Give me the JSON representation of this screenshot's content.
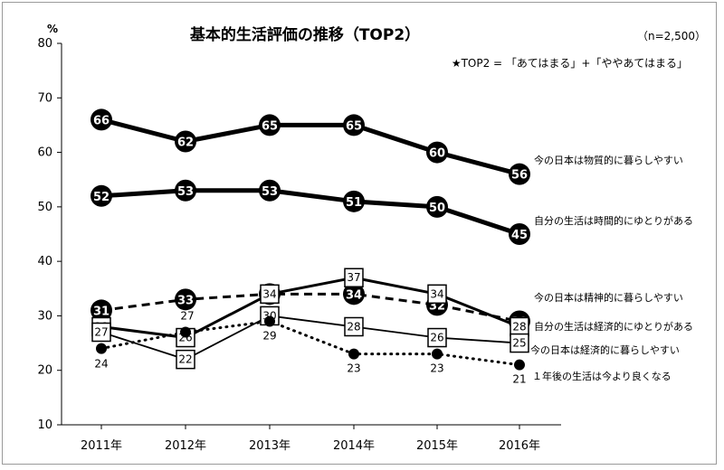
{
  "chart_data": {
    "type": "line",
    "title": "基本的生活評価の推移（TOP2）",
    "sample_note": "（n=2,500）",
    "top2_note": "★TOP2 = 「あてはまる」+「ややあてはまる」",
    "y_unit": "%",
    "ylim": [
      10,
      80
    ],
    "y_ticks": [
      10,
      20,
      30,
      40,
      50,
      60,
      70,
      80
    ],
    "categories": [
      "2011年",
      "2012年",
      "2013年",
      "2014年",
      "2015年",
      "2016年"
    ],
    "grid": false,
    "legend": "inline-right",
    "series": [
      {
        "name": "今の日本は物質的に暮らしやすい",
        "values": [
          66,
          62,
          65,
          65,
          60,
          56
        ],
        "style": "thick",
        "marker": "black-circle",
        "labels": [
          "66",
          "62",
          "65",
          "65",
          "60",
          "56"
        ]
      },
      {
        "name": "自分の生活は時間的にゆとりがある",
        "values": [
          52,
          53,
          53,
          51,
          50,
          45
        ],
        "style": "thick",
        "marker": "black-circle",
        "labels": [
          "52",
          "53",
          "53",
          "51",
          "50",
          "45"
        ]
      },
      {
        "name": "今の日本は精神的に暮らしやすい",
        "values": [
          31,
          33,
          34,
          34,
          32,
          29
        ],
        "style": "dashed",
        "marker": "black-circle",
        "labels": [
          "31",
          "33",
          "34",
          "34",
          "32",
          "29"
        ]
      },
      {
        "name": "自分の生活は経済的にゆとりがある",
        "values": [
          28,
          26,
          34,
          37,
          34,
          28
        ],
        "style": "medium",
        "marker": "white-square",
        "labels": [
          "28",
          "26",
          "34",
          "37",
          "34",
          "28"
        ]
      },
      {
        "name": "今の日本は経済的に暮らしやすい",
        "values": [
          27,
          22,
          30,
          28,
          26,
          25
        ],
        "style": "thin",
        "marker": "white-square",
        "labels": [
          "27",
          "22",
          "30",
          "28",
          "26",
          "25"
        ]
      },
      {
        "name": "１年後の生活は今より良くなる",
        "values": [
          24,
          27,
          29,
          23,
          23,
          21
        ],
        "style": "dotted",
        "marker": "small-dot",
        "labels": [
          "24",
          "27",
          "29",
          "23",
          "23",
          "21"
        ]
      }
    ]
  }
}
